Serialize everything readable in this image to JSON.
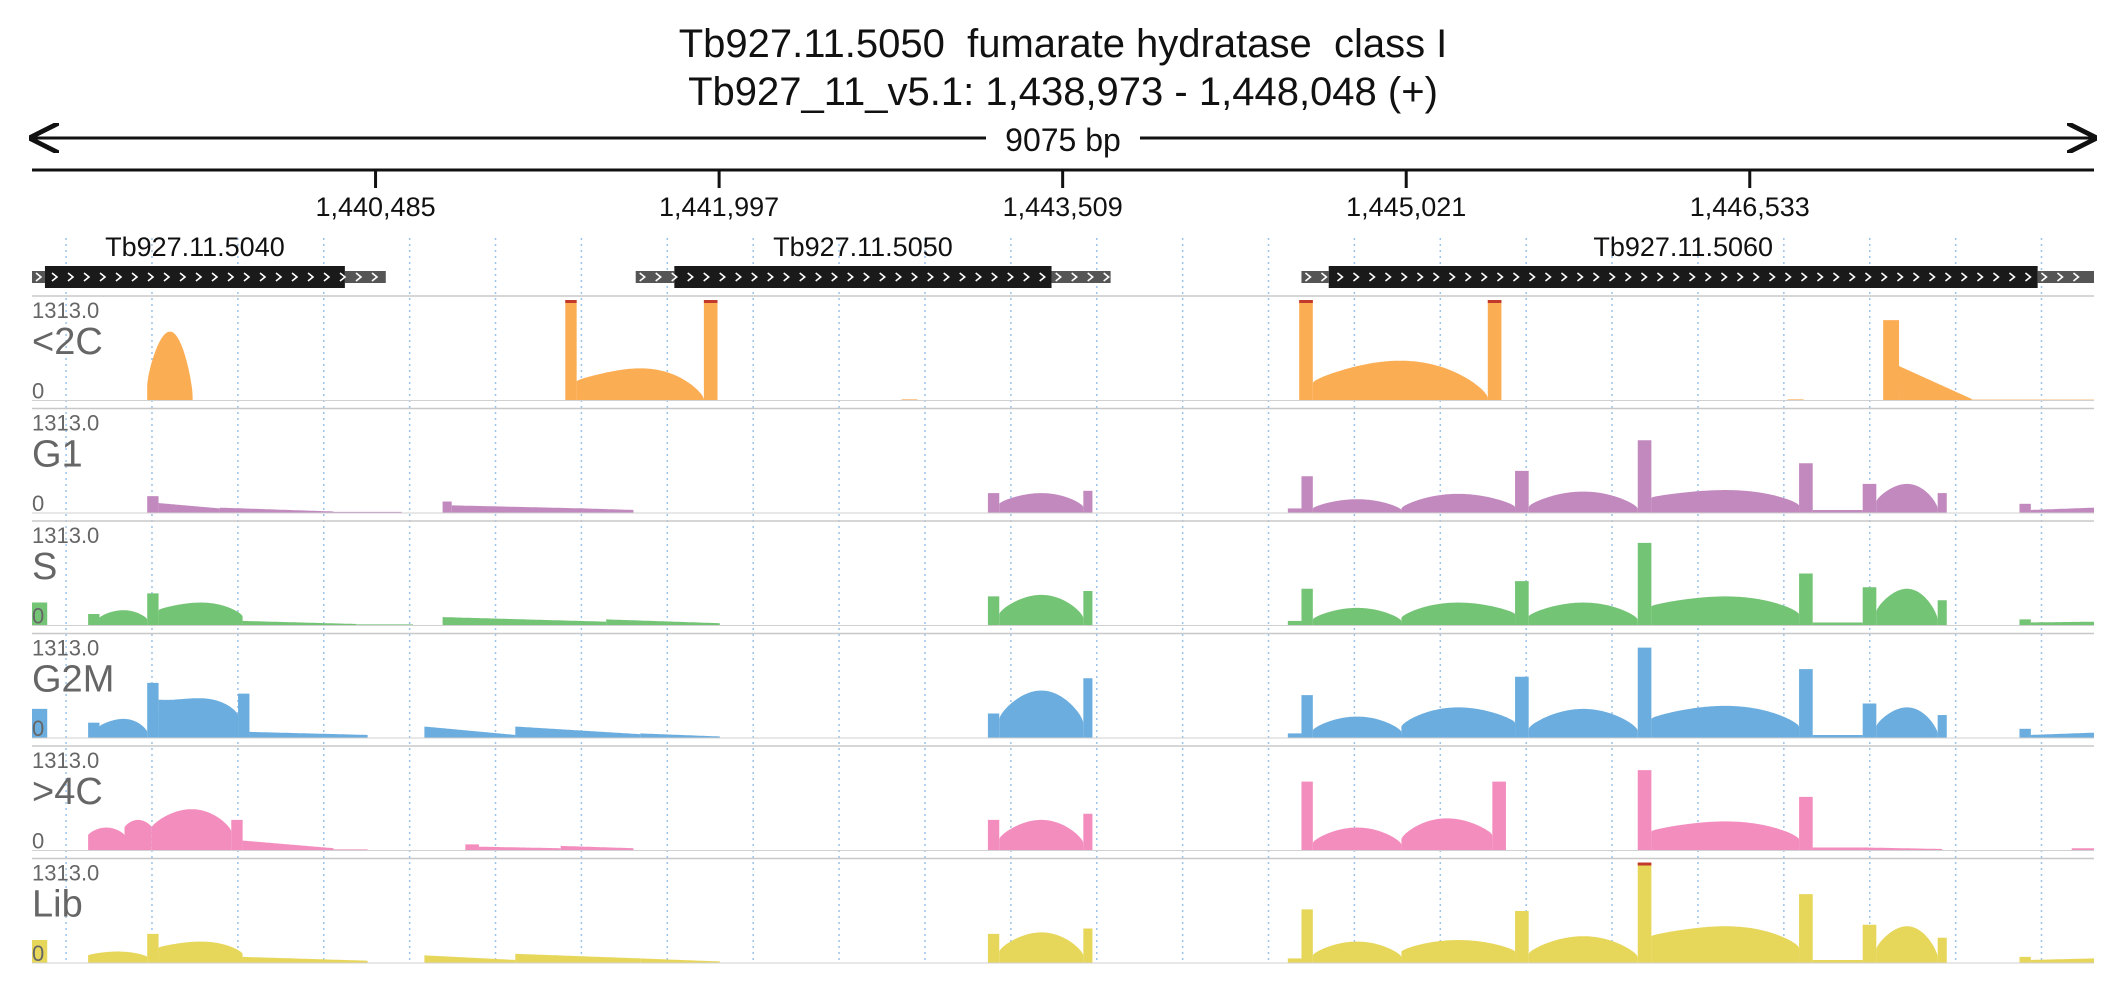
{
  "title": {
    "line1": "Tb927.11.5050  fumarate hydratase  class I",
    "line2": "Tb927_11_v5.1: 1,438,973 - 1,448,048 (+)"
  },
  "ruler": {
    "span_label": "9075 bp",
    "ticks": [
      "1,440,485",
      "1,441,997",
      "1,443,509",
      "1,445,021",
      "1,446,533"
    ]
  },
  "chart_data": {
    "type": "area",
    "x_range": [
      1438973,
      1448048
    ],
    "x_unit": "bp",
    "genes": [
      {
        "id": "Tb927.11.5040",
        "utr5": [
          1438973,
          1439030
        ],
        "cds": [
          1439030,
          1440350
        ],
        "utr3": [
          1440350,
          1440530
        ]
      },
      {
        "id": "Tb927.11.5050",
        "utr5": [
          1441630,
          1441800
        ],
        "cds": [
          1441800,
          1443460
        ],
        "utr3": [
          1443460,
          1443720
        ]
      },
      {
        "id": "Tb927.11.5060",
        "utr5": [
          1444560,
          1444680
        ],
        "cds": [
          1444680,
          1447800
        ],
        "utr3": [
          1447800,
          1448048
        ]
      }
    ],
    "series": [
      {
        "name": "<2C",
        "color": "#fbad54",
        "max_label": "1313.0",
        "min_label": "0",
        "ylim": [
          0,
          1313
        ],
        "bars": [
          [
            1439480,
            1439680,
            "hump",
            900,
            200,
            60
          ],
          [
            1441320,
            1441370,
            "flat",
            1313
          ],
          [
            1441370,
            1441930,
            "hump",
            420,
            250,
            20
          ],
          [
            1441930,
            1441990,
            "flat",
            1313
          ],
          [
            1442800,
            1442870,
            "flat",
            15
          ],
          [
            1444550,
            1444610,
            "flat",
            1313
          ],
          [
            1444610,
            1445380,
            "hump",
            520,
            230,
            40
          ],
          [
            1445380,
            1445440,
            "flat",
            1313
          ],
          [
            1446700,
            1446770,
            "flat",
            15
          ],
          [
            1447120,
            1447190,
            "flat",
            1050
          ],
          [
            1447190,
            1447510,
            "decay",
            450,
            20
          ],
          [
            1447510,
            1448048,
            "flat",
            12
          ]
        ]
      },
      {
        "name": "G1",
        "color": "#c289bf",
        "max_label": "1313.0",
        "min_label": "0",
        "ylim": [
          0,
          1313
        ],
        "bars": [
          [
            1439480,
            1439530,
            "flat",
            220
          ],
          [
            1439530,
            1439800,
            "decay",
            130,
            60
          ],
          [
            1439800,
            1440300,
            "decay",
            70,
            20
          ],
          [
            1440300,
            1440600,
            "flat",
            15
          ],
          [
            1440780,
            1440820,
            "flat",
            150
          ],
          [
            1440820,
            1441400,
            "decay",
            100,
            60
          ],
          [
            1441400,
            1441620,
            "decay",
            60,
            40
          ],
          [
            1443180,
            1443230,
            "flat",
            260
          ],
          [
            1443230,
            1443600,
            "hump",
            260,
            120,
            80
          ],
          [
            1443600,
            1443640,
            "flat",
            290
          ],
          [
            1444500,
            1444560,
            "flat",
            60
          ],
          [
            1444560,
            1444610,
            "flat",
            480
          ],
          [
            1444610,
            1445000,
            "hump",
            180,
            60,
            40
          ],
          [
            1445000,
            1445500,
            "hump",
            250,
            60,
            80
          ],
          [
            1445500,
            1445560,
            "flat",
            550
          ],
          [
            1445560,
            1446040,
            "hump",
            280,
            80,
            60
          ],
          [
            1446040,
            1446100,
            "flat",
            950
          ],
          [
            1446100,
            1446750,
            "hump",
            300,
            200,
            100
          ],
          [
            1446750,
            1446810,
            "flat",
            650
          ],
          [
            1446810,
            1447030,
            "flat",
            40
          ],
          [
            1447030,
            1447090,
            "flat",
            380
          ],
          [
            1447090,
            1447360,
            "hump",
            380,
            150,
            60
          ],
          [
            1447360,
            1447400,
            "flat",
            260
          ],
          [
            1447720,
            1447770,
            "flat",
            120
          ],
          [
            1447770,
            1448048,
            "decay",
            40,
            70
          ]
        ]
      },
      {
        "name": "S",
        "color": "#74c476",
        "max_label": "1313.0",
        "min_label": "0",
        "ylim": [
          0,
          1313
        ],
        "bars": [
          [
            1438973,
            1439040,
            "flat",
            300
          ],
          [
            1439220,
            1439270,
            "flat",
            150
          ],
          [
            1439270,
            1439480,
            "hump",
            200,
            100,
            80
          ],
          [
            1439480,
            1439530,
            "flat",
            420
          ],
          [
            1439530,
            1439900,
            "hump",
            300,
            200,
            120
          ],
          [
            1439900,
            1440400,
            "decay",
            60,
            20
          ],
          [
            1440400,
            1440650,
            "flat",
            15
          ],
          [
            1440780,
            1441500,
            "decay",
            110,
            50
          ],
          [
            1441500,
            1442000,
            "decay",
            80,
            30
          ],
          [
            1443180,
            1443230,
            "flat",
            380
          ],
          [
            1443230,
            1443600,
            "hump",
            400,
            150,
            100
          ],
          [
            1443600,
            1443640,
            "flat",
            450
          ],
          [
            1444500,
            1444560,
            "flat",
            60
          ],
          [
            1444560,
            1444610,
            "flat",
            480
          ],
          [
            1444610,
            1445000,
            "hump",
            230,
            80,
            60
          ],
          [
            1445000,
            1445500,
            "hump",
            300,
            100,
            150
          ],
          [
            1445500,
            1445560,
            "flat",
            580
          ],
          [
            1445560,
            1446040,
            "hump",
            300,
            120,
            80
          ],
          [
            1446040,
            1446100,
            "flat",
            1080
          ],
          [
            1446100,
            1446750,
            "hump",
            380,
            250,
            150
          ],
          [
            1446750,
            1446810,
            "flat",
            680
          ],
          [
            1446810,
            1447030,
            "flat",
            40
          ],
          [
            1447030,
            1447090,
            "flat",
            500
          ],
          [
            1447090,
            1447360,
            "hump",
            480,
            180,
            80
          ],
          [
            1447360,
            1447400,
            "flat",
            330
          ],
          [
            1447720,
            1447770,
            "flat",
            80
          ],
          [
            1447770,
            1448048,
            "decay",
            40,
            50
          ]
        ]
      },
      {
        "name": "G2M",
        "color": "#6aadde",
        "max_label": "1313.0",
        "min_label": "0",
        "ylim": [
          0,
          1313
        ],
        "bars": [
          [
            1438973,
            1439040,
            "flat",
            380
          ],
          [
            1439220,
            1439270,
            "flat",
            200
          ],
          [
            1439270,
            1439480,
            "hump",
            250,
            150,
            80
          ],
          [
            1439480,
            1439530,
            "flat",
            720
          ],
          [
            1439530,
            1439880,
            "hump",
            520,
            500,
            300
          ],
          [
            1439880,
            1439930,
            "flat",
            580
          ],
          [
            1439930,
            1440450,
            "decay",
            80,
            40
          ],
          [
            1440700,
            1441100,
            "decay",
            150,
            40
          ],
          [
            1441100,
            1441650,
            "decay",
            150,
            50
          ],
          [
            1441650,
            1442000,
            "decay",
            60,
            20
          ],
          [
            1443180,
            1443230,
            "flat",
            320
          ],
          [
            1443230,
            1443600,
            "hump",
            620,
            250,
            200
          ],
          [
            1443600,
            1443640,
            "flat",
            780
          ],
          [
            1444500,
            1444560,
            "flat",
            60
          ],
          [
            1444560,
            1444610,
            "flat",
            560
          ],
          [
            1444610,
            1445000,
            "hump",
            280,
            100,
            80
          ],
          [
            1445000,
            1445500,
            "hump",
            400,
            150,
            200
          ],
          [
            1445500,
            1445560,
            "flat",
            800
          ],
          [
            1445560,
            1446040,
            "hump",
            380,
            120,
            100
          ],
          [
            1446040,
            1446100,
            "flat",
            1180
          ],
          [
            1446100,
            1446750,
            "hump",
            420,
            250,
            150
          ],
          [
            1446750,
            1446810,
            "flat",
            900
          ],
          [
            1446810,
            1447030,
            "flat",
            40
          ],
          [
            1447030,
            1447090,
            "flat",
            450
          ],
          [
            1447090,
            1447360,
            "hump",
            400,
            150,
            60
          ],
          [
            1447360,
            1447400,
            "flat",
            300
          ],
          [
            1447720,
            1447770,
            "flat",
            120
          ],
          [
            1447770,
            1448048,
            "decay",
            40,
            70
          ]
        ]
      },
      {
        "name": ">4C",
        "color": "#f38dbe",
        "max_label": "1313.0",
        "min_label": "0",
        "ylim": [
          0,
          1313
        ],
        "bars": [
          [
            1439220,
            1439380,
            "hump",
            300,
            200,
            200
          ],
          [
            1439380,
            1439500,
            "hump",
            400,
            300,
            300
          ],
          [
            1439500,
            1439850,
            "hump",
            540,
            300,
            250
          ],
          [
            1439850,
            1439900,
            "flat",
            400
          ],
          [
            1439900,
            1440300,
            "decay",
            130,
            30
          ],
          [
            1440300,
            1440450,
            "flat",
            15
          ],
          [
            1440880,
            1440940,
            "flat",
            80
          ],
          [
            1440940,
            1441300,
            "decay",
            50,
            30
          ],
          [
            1441300,
            1441620,
            "decay",
            60,
            30
          ],
          [
            1443180,
            1443230,
            "flat",
            400
          ],
          [
            1443230,
            1443600,
            "hump",
            400,
            150,
            100
          ],
          [
            1443600,
            1443640,
            "flat",
            480
          ],
          [
            1444560,
            1444610,
            "flat",
            900
          ],
          [
            1444610,
            1445000,
            "hump",
            300,
            100,
            80
          ],
          [
            1445000,
            1445400,
            "hump",
            420,
            150,
            200
          ],
          [
            1445400,
            1445460,
            "flat",
            900
          ],
          [
            1446040,
            1446100,
            "flat",
            1050
          ],
          [
            1446100,
            1446750,
            "hump",
            380,
            250,
            150
          ],
          [
            1446750,
            1446810,
            "flat",
            700
          ],
          [
            1446810,
            1447030,
            "flat",
            40
          ],
          [
            1447030,
            1447380,
            "decay",
            40,
            20
          ],
          [
            1447950,
            1448048,
            "flat",
            30
          ]
        ]
      },
      {
        "name": "Lib",
        "color": "#e6d65a",
        "max_label": "1313.0",
        "min_label": "0",
        "ylim": [
          0,
          1313
        ],
        "bars": [
          [
            1438973,
            1439040,
            "flat",
            300
          ],
          [
            1439220,
            1439480,
            "hump",
            150,
            100,
            80
          ],
          [
            1439480,
            1439530,
            "flat",
            380
          ],
          [
            1439530,
            1439900,
            "hump",
            280,
            200,
            120
          ],
          [
            1439900,
            1440450,
            "decay",
            80,
            30
          ],
          [
            1440700,
            1441100,
            "decay",
            100,
            40
          ],
          [
            1441100,
            1441650,
            "decay",
            120,
            60
          ],
          [
            1441650,
            1442000,
            "decay",
            60,
            20
          ],
          [
            1443180,
            1443230,
            "flat",
            380
          ],
          [
            1443230,
            1443600,
            "hump",
            400,
            150,
            100
          ],
          [
            1443600,
            1443640,
            "flat",
            450
          ],
          [
            1444500,
            1444560,
            "flat",
            60
          ],
          [
            1444560,
            1444610,
            "flat",
            700
          ],
          [
            1444610,
            1445000,
            "hump",
            280,
            100,
            80
          ],
          [
            1445000,
            1445500,
            "hump",
            300,
            150,
            150
          ],
          [
            1445500,
            1445560,
            "flat",
            680
          ],
          [
            1445560,
            1446040,
            "hump",
            350,
            120,
            80
          ],
          [
            1446040,
            1446100,
            "flat",
            1313
          ],
          [
            1446100,
            1446750,
            "hump",
            480,
            350,
            200
          ],
          [
            1446750,
            1446810,
            "flat",
            900
          ],
          [
            1446810,
            1447030,
            "flat",
            40
          ],
          [
            1447030,
            1447090,
            "flat",
            500
          ],
          [
            1447090,
            1447360,
            "hump",
            480,
            180,
            80
          ],
          [
            1447360,
            1447400,
            "flat",
            330
          ],
          [
            1447720,
            1447770,
            "flat",
            80
          ],
          [
            1447770,
            1448048,
            "decay",
            40,
            60
          ]
        ]
      }
    ],
    "gridlines": "dotted blue vertical",
    "legend": "none"
  }
}
